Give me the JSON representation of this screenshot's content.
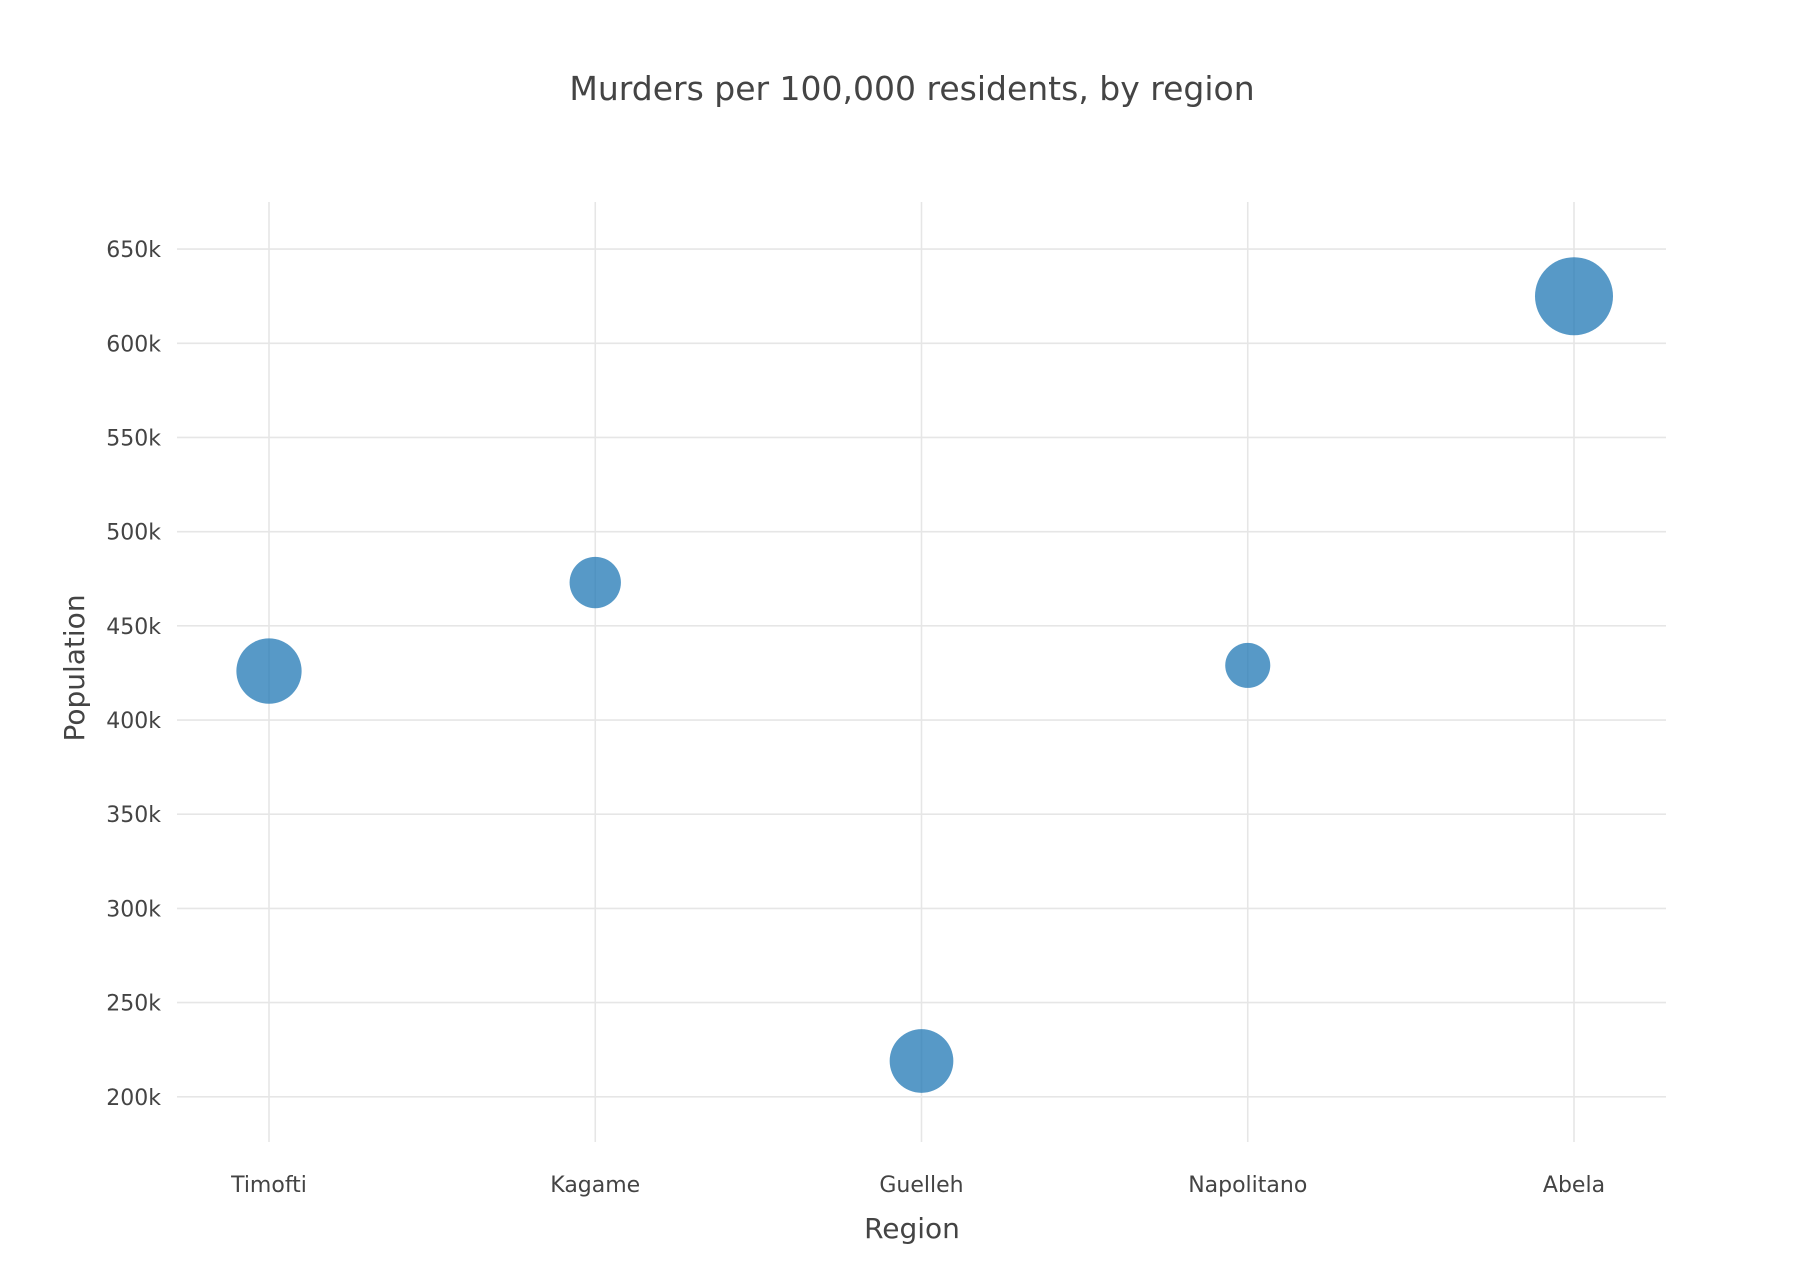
{
  "chart_data": {
    "type": "scatter",
    "title": "Murders per 100,000 residents, by region",
    "xlabel": "Region",
    "ylabel": "Population",
    "categories": [
      "Timofti",
      "Kagame",
      "Guelleh",
      "Napolitano",
      "Abela"
    ],
    "y_ticks": [
      200000,
      250000,
      300000,
      350000,
      400000,
      450000,
      500000,
      550000,
      600000,
      650000
    ],
    "y_tick_labels": [
      "200k",
      "250k",
      "300k",
      "350k",
      "400k",
      "450k",
      "500k",
      "550k",
      "600k",
      "650k"
    ],
    "ylim": [
      176000,
      675000
    ],
    "grid": true,
    "legend": "none",
    "series": [
      {
        "color": "#1f77b4",
        "points": [
          {
            "x": "Timofti",
            "y": 426000,
            "size": 4.2
          },
          {
            "x": "Kagame",
            "y": 473000,
            "size": 2.6
          },
          {
            "x": "Guelleh",
            "y": 219000,
            "size": 4.0
          },
          {
            "x": "Napolitano",
            "y": 429000,
            "size": 2.0
          },
          {
            "x": "Abela",
            "y": 625000,
            "size": 6.0
          }
        ]
      }
    ]
  }
}
